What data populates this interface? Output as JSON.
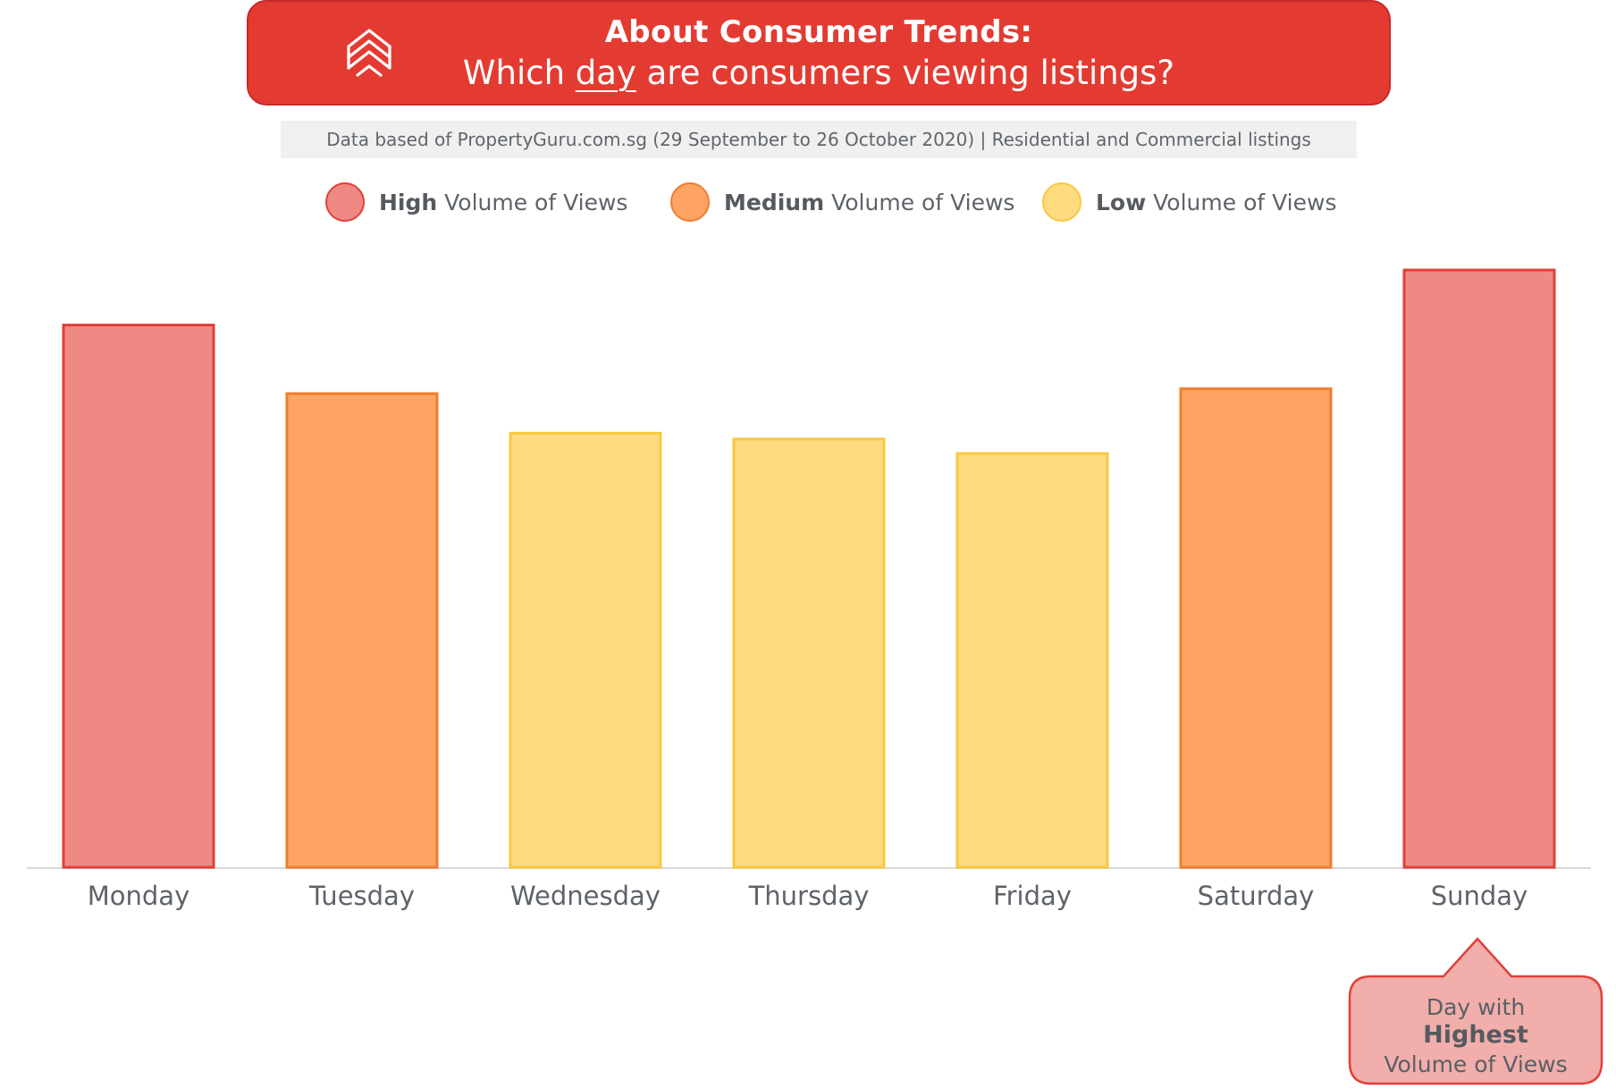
{
  "header": {
    "title": "About Consumer Trends:",
    "subtitle_pre": "Which ",
    "subtitle_emph": "day",
    "subtitle_post": " are consumers viewing listings?"
  },
  "source_note": "Data based of PropertyGuru.com.sg (29 September to 26 October 2020) | Residential and Commercial listings",
  "legend": [
    {
      "level": "High",
      "rest": " Volume of Views",
      "fill": "#ee8a83",
      "stroke": "#e0403a"
    },
    {
      "level": "Medium",
      "rest": " Volume of Views",
      "fill": "#ffa462",
      "stroke": "#f07d2e"
    },
    {
      "level": "Low",
      "rest": " Volume of Views",
      "fill": "#ffdb80",
      "stroke": "#f7c940"
    }
  ],
  "colors": {
    "brand_red": "#e33b32",
    "axis": "#d8d8d8",
    "label": "#5e6369"
  },
  "chart_data": {
    "type": "bar",
    "categories": [
      "Monday",
      "Tuesday",
      "Wednesday",
      "Thursday",
      "Friday",
      "Saturday",
      "Sunday"
    ],
    "values": [
      94.3,
      87.2,
      83.1,
      82.5,
      81.0,
      87.7,
      100
    ],
    "levels": [
      "High",
      "Medium",
      "Low",
      "Low",
      "Low",
      "Medium",
      "High"
    ],
    "ylim": [
      0,
      100
    ],
    "grid": false,
    "legend_position": "top"
  },
  "callout": {
    "line1": "Day with",
    "line2": "Highest",
    "line3": "Volume of Views"
  }
}
